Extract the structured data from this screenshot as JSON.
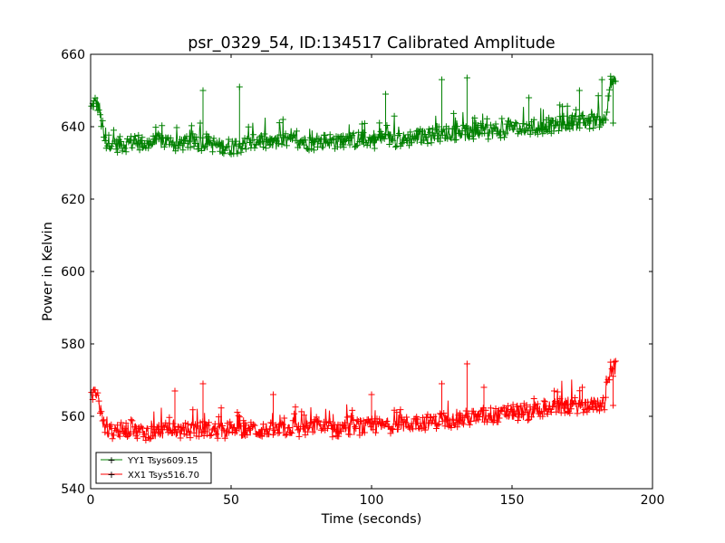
{
  "chart_data": {
    "type": "line",
    "title": "psr_0329_54, ID:134517 Calibrated Amplitude",
    "xlabel": "Time (seconds)",
    "ylabel": "Power in Kelvin",
    "xlim": [
      0,
      200
    ],
    "ylim": [
      540,
      660
    ],
    "xticks": [
      0,
      50,
      100,
      150,
      200
    ],
    "yticks": [
      540,
      560,
      580,
      600,
      620,
      640,
      660
    ],
    "grid": false,
    "legend_position": "lower-left",
    "marker": "+",
    "series": [
      {
        "name": "YY1 Tsys609.15",
        "color": "#008000",
        "x": [
          0.3,
          1.0,
          2.0,
          3.0,
          5,
          10,
          15,
          20,
          25,
          30,
          35,
          40,
          45,
          50,
          55,
          60,
          65,
          70,
          75,
          80,
          85,
          90,
          95,
          100,
          105,
          110,
          115,
          120,
          125,
          130,
          135,
          140,
          145,
          150,
          155,
          160,
          165,
          170,
          175,
          180,
          183,
          185,
          186,
          187
        ],
        "y": [
          645,
          646,
          647,
          645.5,
          636,
          635,
          635.5,
          635,
          636,
          635,
          636,
          635.5,
          635,
          634.5,
          635,
          636,
          635.5,
          636,
          636,
          635.5,
          636,
          636,
          636.5,
          636,
          637,
          636.5,
          637,
          637.5,
          638,
          638.5,
          638,
          638.5,
          639,
          639.5,
          639.5,
          640,
          640.5,
          641,
          641,
          642,
          642,
          652,
          652,
          652
        ],
        "spikes": [
          {
            "x": 40,
            "y": 650
          },
          {
            "x": 53,
            "y": 651
          },
          {
            "x": 105,
            "y": 649
          },
          {
            "x": 125,
            "y": 653
          },
          {
            "x": 134,
            "y": 653.5
          },
          {
            "x": 156,
            "y": 648
          },
          {
            "x": 167,
            "y": 646
          },
          {
            "x": 174,
            "y": 650
          },
          {
            "x": 182,
            "y": 653
          },
          {
            "x": 186,
            "y": 641
          }
        ]
      },
      {
        "name": "XX1 Tsys516.70",
        "color": "#ff0000",
        "x": [
          0.3,
          1.0,
          2.0,
          3.0,
          5,
          10,
          15,
          20,
          25,
          30,
          35,
          40,
          45,
          50,
          55,
          60,
          65,
          70,
          75,
          80,
          85,
          90,
          95,
          100,
          105,
          110,
          115,
          120,
          125,
          130,
          135,
          140,
          145,
          150,
          155,
          160,
          165,
          170,
          175,
          180,
          183,
          185,
          186,
          187
        ],
        "y": [
          565,
          566,
          565.5,
          564,
          556,
          556,
          556.5,
          555.5,
          556,
          556,
          556,
          556.5,
          556,
          556,
          556,
          556.5,
          556,
          556.5,
          556.5,
          557,
          556.5,
          556.5,
          557,
          557,
          557.5,
          557.5,
          558,
          558.5,
          559,
          559,
          559.5,
          560,
          560.5,
          561,
          561,
          562,
          562.5,
          563,
          563,
          563.5,
          563.5,
          573,
          573,
          572.5
        ],
        "spikes": [
          {
            "x": 30,
            "y": 567
          },
          {
            "x": 40,
            "y": 569
          },
          {
            "x": 65,
            "y": 566
          },
          {
            "x": 100,
            "y": 566
          },
          {
            "x": 125,
            "y": 569
          },
          {
            "x": 134,
            "y": 574.5
          },
          {
            "x": 140,
            "y": 568
          },
          {
            "x": 165,
            "y": 567
          },
          {
            "x": 175,
            "y": 568
          },
          {
            "x": 186,
            "y": 563
          }
        ]
      }
    ]
  }
}
